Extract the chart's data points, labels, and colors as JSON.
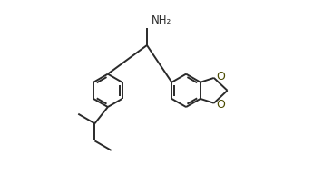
{
  "background": "#ffffff",
  "line_color": "#2a2a2a",
  "line_width": 1.4,
  "font_size": 8.5,
  "NH2": "NH₂",
  "O": "O",
  "figsize": [
    3.45,
    1.92
  ],
  "dpi": 100,
  "dbo": 0.012
}
